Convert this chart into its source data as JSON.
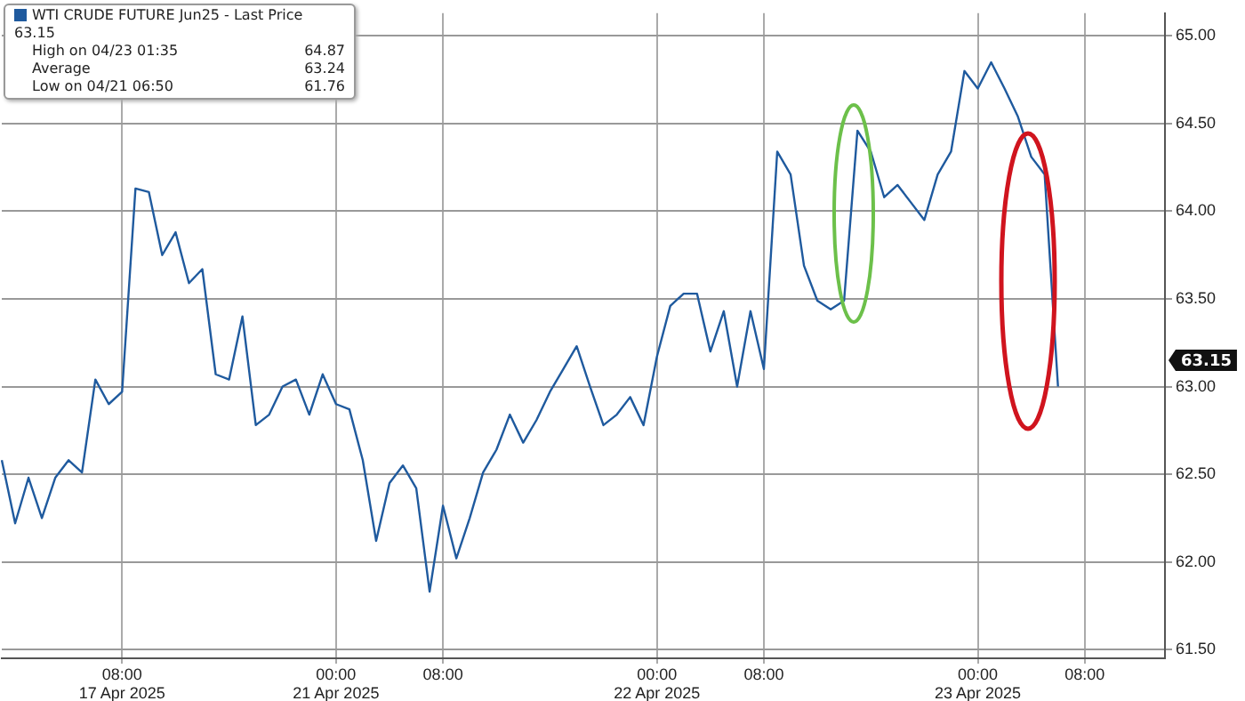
{
  "chart_data": {
    "type": "line",
    "categories": [
      null,
      null,
      null,
      null,
      null,
      null,
      null,
      null,
      null,
      "08:00\n17 Apr 2025",
      null,
      null,
      null,
      null,
      null,
      null,
      null,
      null,
      null,
      null,
      null,
      null,
      null,
      null,
      null,
      "00:00\n21 Apr 2025",
      null,
      null,
      null,
      null,
      null,
      null,
      null,
      "08:00",
      null,
      null,
      null,
      null,
      null,
      null,
      null,
      null,
      null,
      null,
      null,
      null,
      null,
      null,
      null,
      "00:00\n22 Apr 2025",
      null,
      null,
      null,
      null,
      null,
      null,
      null,
      "08:00",
      null,
      null,
      null,
      null,
      null,
      null,
      null,
      null,
      null,
      null,
      null,
      null,
      null,
      null,
      null,
      "00:00\n23 Apr 2025",
      null,
      null,
      null,
      null,
      null,
      null,
      null,
      "08:00",
      null,
      null,
      null,
      null,
      null,
      null
    ],
    "series": [
      {
        "name": "WTI CRUDE FUTURE Jun25 - Last Price 63.15",
        "color": "#1f5a9e",
        "values": [
          62.58,
          62.22,
          62.48,
          62.25,
          62.48,
          62.58,
          62.51,
          63.04,
          62.9,
          62.97,
          64.13,
          64.11,
          63.75,
          63.88,
          63.59,
          63.67,
          63.07,
          63.04,
          63.4,
          62.78,
          62.84,
          63.0,
          63.04,
          62.84,
          63.07,
          62.9,
          62.87,
          62.58,
          62.12,
          62.45,
          62.55,
          62.42,
          61.83,
          62.32,
          62.02,
          62.25,
          62.51,
          62.64,
          62.84,
          62.68,
          62.81,
          62.97,
          63.1,
          63.23,
          63.0,
          62.78,
          62.84,
          62.94,
          62.78,
          63.17,
          63.46,
          63.53,
          63.53,
          63.2,
          63.43,
          63.0,
          63.43,
          63.1,
          64.34,
          64.21,
          63.69,
          63.49,
          63.44,
          63.49,
          64.46,
          64.34,
          64.08,
          64.15,
          64.05,
          63.95,
          64.21,
          64.34,
          64.8,
          64.7,
          64.85,
          64.7,
          64.54,
          64.31,
          64.21,
          63.0,
          null,
          null,
          null,
          null,
          null,
          null,
          null,
          null
        ]
      }
    ],
    "ylim": [
      61.45,
      65.13
    ],
    "yticks": [
      {
        "value": 61.5,
        "label": "61.50"
      },
      {
        "value": 62,
        "label": "62.00"
      },
      {
        "value": 62.5,
        "label": "62.50"
      },
      {
        "value": 63,
        "label": "63.00"
      },
      {
        "value": 63.5,
        "label": "63.50"
      },
      {
        "value": 64,
        "label": "64.00"
      },
      {
        "value": 64.5,
        "label": "64.50"
      },
      {
        "value": 65,
        "label": "65.00"
      }
    ],
    "grid": true,
    "legend": "top left",
    "marker": "none",
    "line_style": "solid",
    "annotations": [
      "High on 04/23 01:35 64.87",
      "Average 63.24",
      "Low on 04/21 06:50 61.76",
      {
        "text": "63.15",
        "y": 63.15
      }
    ]
  }
}
